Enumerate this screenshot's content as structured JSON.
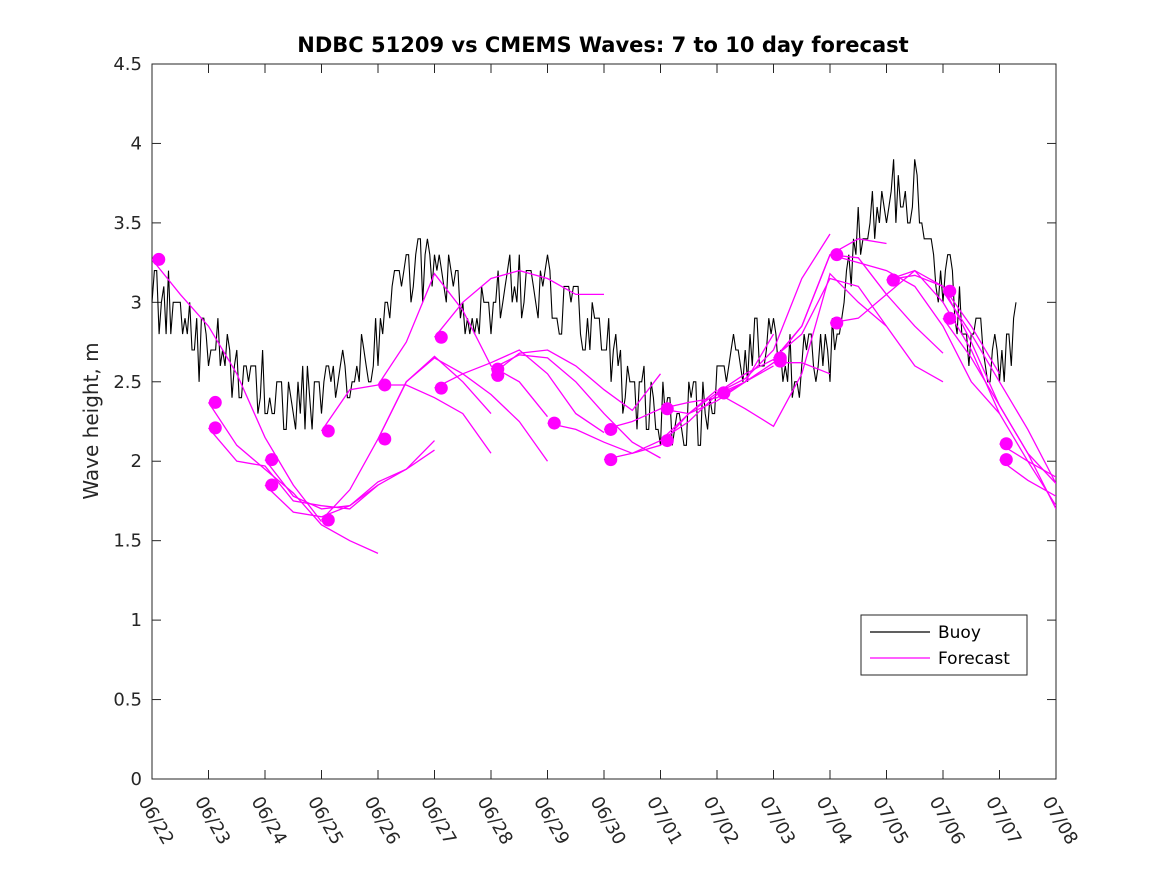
{
  "chart_data": {
    "type": "line",
    "title": "NDBC 51209 vs CMEMS Waves: 7 to 10 day forecast",
    "xlabel": "",
    "ylabel": "Wave height, m",
    "xlim": [
      0,
      16
    ],
    "ylim": [
      0,
      4.5
    ],
    "x_unit": "days from 06/22 00:00",
    "xticks": [
      0,
      1,
      2,
      3,
      4,
      5,
      6,
      7,
      8,
      9,
      10,
      11,
      12,
      13,
      14,
      15,
      16
    ],
    "xtick_labels": [
      "06/22",
      "06/23",
      "06/24",
      "06/25",
      "06/26",
      "06/27",
      "06/28",
      "06/29",
      "06/30",
      "07/01",
      "07/02",
      "07/03",
      "07/04",
      "07/05",
      "07/06",
      "07/07",
      "07/08"
    ],
    "yticks": [
      0,
      0.5,
      1,
      1.5,
      2,
      2.5,
      3,
      3.5,
      4,
      4.5
    ],
    "ytick_labels": [
      "0",
      "0.5",
      "1",
      "1.5",
      "2",
      "2.5",
      "3",
      "3.5",
      "4",
      "4.5"
    ],
    "grid": false,
    "legend": {
      "position": "lower-right",
      "entries": [
        "Buoy",
        "Forecast"
      ]
    },
    "colors": {
      "buoy": "#000000",
      "forecast": "#ff00ff"
    },
    "buoy_anchors": [
      [
        0.0,
        3.05
      ],
      [
        0.3,
        2.95
      ],
      [
        0.8,
        2.75
      ],
      [
        1.5,
        2.6
      ],
      [
        2.0,
        2.45
      ],
      [
        2.5,
        2.4
      ],
      [
        3.0,
        2.45
      ],
      [
        3.5,
        2.55
      ],
      [
        4.0,
        2.7
      ],
      [
        4.5,
        3.2
      ],
      [
        5.0,
        3.3
      ],
      [
        5.5,
        3.0
      ],
      [
        6.0,
        2.95
      ],
      [
        6.5,
        3.15
      ],
      [
        7.0,
        3.1
      ],
      [
        7.5,
        2.95
      ],
      [
        8.0,
        2.7
      ],
      [
        8.5,
        2.45
      ],
      [
        9.0,
        2.3
      ],
      [
        9.5,
        2.25
      ],
      [
        10.0,
        2.45
      ],
      [
        10.5,
        2.7
      ],
      [
        11.0,
        2.75
      ],
      [
        11.5,
        2.55
      ],
      [
        12.0,
        2.7
      ],
      [
        12.5,
        3.4
      ],
      [
        13.0,
        3.7
      ],
      [
        13.5,
        3.6
      ],
      [
        14.0,
        3.2
      ],
      [
        14.5,
        2.8
      ],
      [
        15.0,
        2.55
      ],
      [
        15.3,
        2.8
      ]
    ],
    "buoy_variability": 0.22,
    "forecast_series": [
      {
        "x": [
          0.0,
          0.5,
          1.0,
          1.5,
          2.0,
          2.5,
          3.0
        ],
        "y": [
          3.27,
          3.05,
          2.85,
          2.55,
          2.15,
          1.85,
          1.62
        ]
      },
      {
        "x": [
          1.0,
          1.5,
          2.0,
          2.5,
          3.0,
          3.5,
          4.0
        ],
        "y": [
          2.37,
          2.1,
          1.95,
          1.8,
          1.6,
          1.5,
          1.42
        ]
      },
      {
        "x": [
          1.0,
          1.5,
          2.0,
          2.5,
          3.0,
          3.5,
          4.0
        ],
        "y": [
          2.21,
          2.0,
          1.97,
          1.75,
          1.72,
          1.7,
          1.85
        ]
      },
      {
        "x": [
          2.0,
          2.5,
          3.0,
          3.5,
          4.0,
          4.5,
          5.0
        ],
        "y": [
          2.01,
          1.78,
          1.7,
          1.72,
          1.87,
          1.95,
          2.13
        ]
      },
      {
        "x": [
          2.0,
          2.5,
          3.0,
          3.5,
          4.0,
          4.5,
          5.0
        ],
        "y": [
          1.85,
          1.68,
          1.65,
          1.72,
          1.85,
          1.95,
          2.07
        ]
      },
      {
        "x": [
          3.0,
          3.5,
          4.0,
          4.5,
          5.0,
          5.5,
          6.0
        ],
        "y": [
          1.63,
          1.82,
          2.14,
          2.5,
          2.66,
          2.5,
          2.3
        ]
      },
      {
        "x": [
          3.0,
          3.5,
          4.0,
          4.5,
          5.0,
          5.5,
          6.0
        ],
        "y": [
          2.19,
          2.45,
          2.48,
          2.48,
          2.4,
          2.3,
          2.05
        ]
      },
      {
        "x": [
          4.0,
          4.5,
          5.0,
          5.5,
          6.0,
          6.5,
          7.0
        ],
        "y": [
          2.14,
          2.5,
          2.65,
          2.55,
          2.42,
          2.25,
          2.0
        ]
      },
      {
        "x": [
          4.0,
          4.5,
          5.0,
          5.5,
          6.0,
          6.5,
          7.0
        ],
        "y": [
          2.48,
          2.75,
          3.18,
          2.95,
          2.6,
          2.5,
          2.28
        ]
      },
      {
        "x": [
          5.0,
          5.5,
          6.0,
          6.5,
          7.0,
          7.5,
          8.0
        ],
        "y": [
          2.46,
          2.55,
          2.62,
          2.7,
          2.55,
          2.3,
          2.18
        ]
      },
      {
        "x": [
          5.0,
          5.5,
          6.0,
          6.5,
          7.0,
          7.5,
          8.0
        ],
        "y": [
          2.78,
          3.0,
          3.15,
          3.2,
          3.15,
          3.05,
          3.05
        ]
      },
      {
        "x": [
          6.0,
          6.5,
          7.0,
          7.5,
          8.0,
          8.5,
          9.0
        ],
        "y": [
          2.58,
          2.67,
          2.65,
          2.5,
          2.3,
          2.12,
          2.02
        ]
      },
      {
        "x": [
          6.0,
          6.5,
          7.0,
          7.5,
          8.0,
          8.5,
          9.0
        ],
        "y": [
          2.54,
          2.68,
          2.7,
          2.6,
          2.45,
          2.32,
          2.55
        ]
      },
      {
        "x": [
          7.0,
          7.5,
          8.0,
          8.5,
          9.0,
          9.5,
          10.0
        ],
        "y": [
          2.24,
          2.2,
          2.12,
          2.05,
          2.1,
          2.3,
          2.45
        ]
      },
      {
        "x": [
          8.0,
          8.5,
          9.0,
          9.5,
          10.0,
          10.5,
          11.0
        ],
        "y": [
          2.2,
          2.25,
          2.33,
          2.37,
          2.4,
          2.5,
          2.8
        ]
      },
      {
        "x": [
          8.0,
          8.5,
          9.0,
          9.5,
          10.0,
          10.5,
          11.0
        ],
        "y": [
          2.01,
          2.05,
          2.13,
          2.25,
          2.42,
          2.5,
          2.6
        ]
      },
      {
        "x": [
          9.0,
          9.5,
          10.0,
          10.5,
          11.0,
          11.5,
          12.0
        ],
        "y": [
          2.33,
          2.3,
          2.38,
          2.5,
          2.62,
          2.62,
          2.55
        ]
      },
      {
        "x": [
          9.0,
          9.5,
          10.0,
          10.5,
          11.0,
          11.5,
          12.0
        ],
        "y": [
          2.13,
          2.3,
          2.43,
          2.52,
          2.7,
          3.15,
          3.43
        ]
      },
      {
        "x": [
          10.0,
          10.5,
          11.0,
          11.5,
          12.0,
          12.5,
          13.0
        ],
        "y": [
          2.43,
          2.55,
          2.64,
          2.85,
          3.3,
          3.4,
          3.37
        ]
      },
      {
        "x": [
          10.0,
          10.5,
          11.0,
          11.5,
          12.0,
          12.5,
          13.0
        ],
        "y": [
          2.43,
          2.33,
          2.22,
          2.55,
          3.18,
          3.0,
          2.85
        ]
      },
      {
        "x": [
          11.0,
          11.5,
          12.0,
          12.5,
          13.0,
          13.5,
          14.0
        ],
        "y": [
          2.63,
          2.85,
          3.3,
          3.28,
          3.05,
          2.85,
          2.68
        ]
      },
      {
        "x": [
          11.0,
          11.5,
          12.0,
          12.5,
          13.0,
          13.5,
          14.0
        ],
        "y": [
          2.65,
          2.8,
          3.15,
          3.1,
          2.85,
          2.6,
          2.5
        ]
      },
      {
        "x": [
          12.0,
          12.5,
          13.0,
          13.5,
          14.0,
          14.5,
          15.0
        ],
        "y": [
          3.3,
          3.25,
          3.2,
          3.1,
          2.85,
          2.5,
          2.3
        ]
      },
      {
        "x": [
          12.0,
          12.5,
          13.0,
          13.5,
          14.0,
          14.5,
          15.0
        ],
        "y": [
          2.87,
          2.9,
          3.05,
          3.2,
          3.1,
          2.85,
          2.55
        ]
      },
      {
        "x": [
          13.0,
          13.5,
          14.0,
          14.5,
          15.0,
          15.5,
          16.0
        ],
        "y": [
          3.14,
          3.17,
          3.1,
          2.75,
          2.35,
          2.05,
          1.86
        ]
      },
      {
        "x": [
          13.0,
          13.5,
          14.0,
          14.5,
          15.0,
          15.5,
          16.0
        ],
        "y": [
          3.14,
          3.2,
          3.0,
          2.7,
          2.3,
          2.0,
          1.72
        ]
      },
      {
        "x": [
          14.0,
          14.5,
          15.0,
          15.5,
          16.0
        ],
        "y": [
          3.07,
          2.8,
          2.5,
          2.2,
          1.86
        ]
      },
      {
        "x": [
          14.0,
          14.5,
          15.0,
          15.5,
          16.0
        ],
        "y": [
          2.9,
          2.65,
          2.35,
          2.05,
          1.7
        ]
      },
      {
        "x": [
          15.0,
          15.5,
          16.0
        ],
        "y": [
          2.11,
          2.0,
          1.9
        ]
      },
      {
        "x": [
          15.0,
          15.5,
          16.0
        ],
        "y": [
          2.01,
          1.88,
          1.78
        ]
      }
    ]
  }
}
